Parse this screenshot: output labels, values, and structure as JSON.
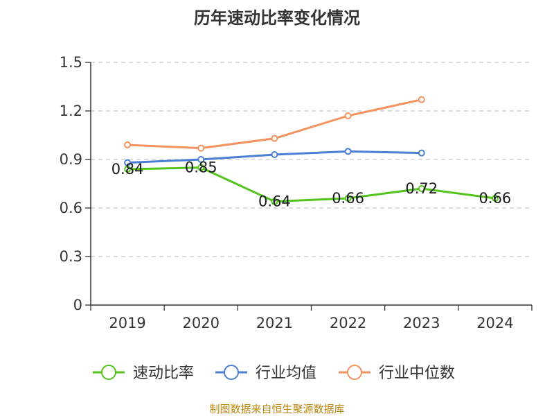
{
  "chart_data": {
    "type": "line",
    "title": "历年速动比率变化情况",
    "categories": [
      "2019",
      "2020",
      "2021",
      "2022",
      "2023",
      "2024"
    ],
    "ylim": [
      0,
      1.5
    ],
    "yticks": [
      "0",
      "0.3",
      "0.6",
      "0.9",
      "1.2",
      "1.5"
    ],
    "grid": true,
    "legend_position": "bottom",
    "series": [
      {
        "name": "速动比率",
        "color": "#52c41a",
        "values": [
          0.84,
          0.85,
          0.64,
          0.66,
          0.72,
          0.66
        ],
        "labels": [
          "0.84",
          "0.85",
          "0.64",
          "0.66",
          "0.72",
          "0.66"
        ]
      },
      {
        "name": "行业均值",
        "color": "#4a7fd4",
        "values": [
          0.88,
          0.9,
          0.93,
          0.95,
          0.94,
          null
        ]
      },
      {
        "name": "行业中位数",
        "color": "#f5925e",
        "values": [
          0.99,
          0.97,
          1.03,
          1.17,
          1.27,
          null
        ]
      }
    ],
    "source": "制图数据来自恒生聚源数据库"
  }
}
